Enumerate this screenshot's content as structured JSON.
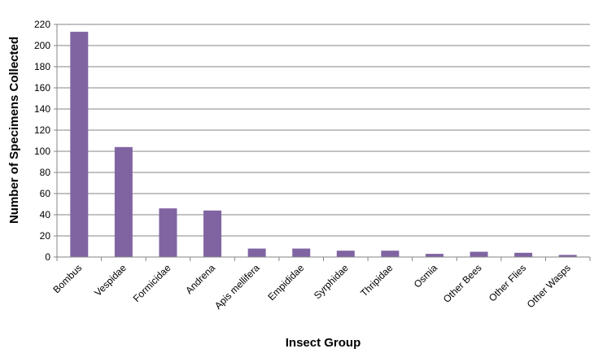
{
  "chart_data": {
    "type": "bar",
    "title": "",
    "xlabel": "Insect Group",
    "ylabel": "Number of Specimens Collected",
    "categories": [
      "Bombus",
      "Vespidae",
      "Formicidae",
      "Andrena",
      "Apis mellifera",
      "Empididae",
      "Syrphidae",
      "Thripidae",
      "Osmia",
      "Other Bees",
      "Other Flies",
      "Other Wasps"
    ],
    "values": [
      213,
      104,
      46,
      44,
      8,
      8,
      6,
      6,
      3,
      5,
      4,
      2
    ],
    "ylim": [
      0,
      220
    ],
    "yticks": [
      "0",
      "20",
      "40",
      "60",
      "80",
      "100",
      "120",
      "140",
      "160",
      "180",
      "200",
      "220"
    ],
    "grid": true,
    "legend": "none",
    "bar_color": "#8064a2"
  }
}
